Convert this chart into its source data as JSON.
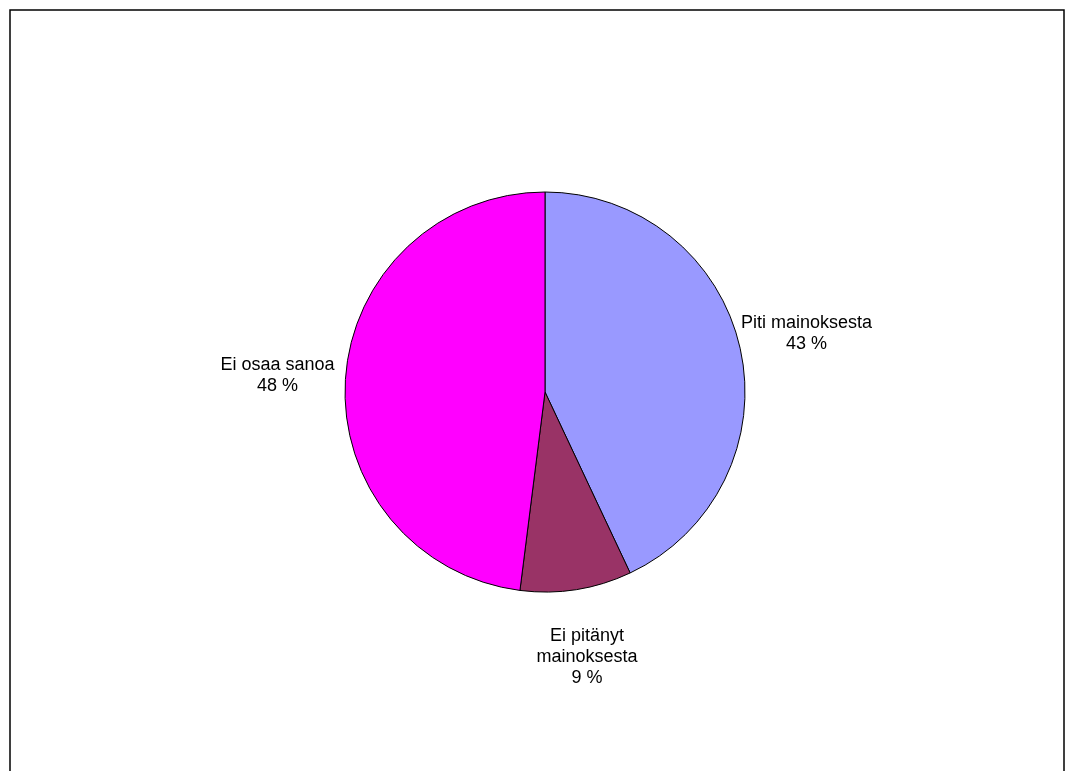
{
  "chart_data": {
    "type": "pie",
    "categories": [
      "Piti mainoksesta",
      "Ei pitänyt mainoksesta",
      "Ei osaa sanoa"
    ],
    "values": [
      43,
      9,
      48
    ],
    "colors": [
      "#9999ff",
      "#993366",
      "#ff00ff"
    ],
    "value_labels": [
      "43 %",
      "9 %",
      "48 %"
    ]
  }
}
